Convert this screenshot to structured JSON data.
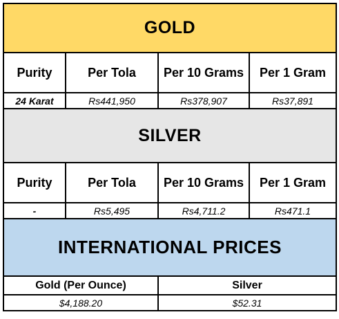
{
  "gold": {
    "title": "GOLD",
    "headers": [
      "Purity",
      "Per Tola",
      "Per 10 Grams",
      "Per 1 Gram"
    ],
    "row": [
      "24 Karat",
      "Rs441,950",
      "Rs378,907",
      "Rs37,891"
    ]
  },
  "silver": {
    "title": "SILVER",
    "headers": [
      "Purity",
      "Per Tola",
      "Per 10 Grams",
      "Per 1 Gram"
    ],
    "row": [
      "-",
      "Rs5,495",
      "Rs4,711.2",
      "Rs471.1"
    ]
  },
  "international": {
    "title": "INTERNATIONAL PRICES",
    "headers": [
      "Gold (Per Ounce)",
      "Silver"
    ],
    "row": [
      "$4,188.20",
      "$52.31"
    ]
  },
  "colors": {
    "gold_banner": "#ffd966",
    "silver_banner": "#e6e6e6",
    "international_banner": "#bdd7ee"
  }
}
